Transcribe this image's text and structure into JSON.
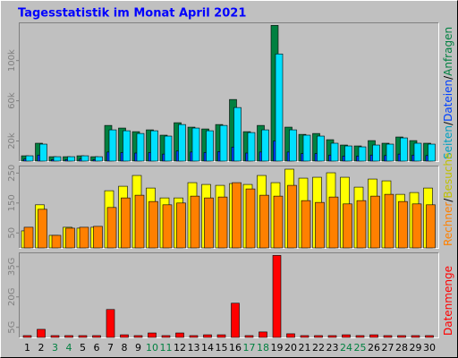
{
  "title": "Tagesstatistik im Monat April 2021",
  "label_separator": "/",
  "chart_data": [
    {
      "type": "bar",
      "series": [
        {
          "name": "Anfragen",
          "color": "#008040",
          "values": [
            5300,
            17800,
            4400,
            4400,
            5300,
            4400,
            35500,
            32900,
            29300,
            31100,
            25800,
            38200,
            33800,
            32000,
            36400,
            61300,
            29300,
            35500,
            135000,
            33800,
            26600,
            27500,
            21300,
            16000,
            15100,
            20400,
            17800,
            24000,
            20400,
            17800
          ]
        },
        {
          "name": "Dateien",
          "color": "#0040ff",
          "values": [
            2000,
            6000,
            1500,
            1500,
            2000,
            1500,
            9000,
            8500,
            8000,
            8500,
            7000,
            10000,
            9000,
            8500,
            9500,
            14000,
            8000,
            9000,
            20000,
            9000,
            7500,
            7500,
            6000,
            5000,
            5000,
            6000,
            5500,
            7000,
            6000,
            5500
          ]
        },
        {
          "name": "Seiten",
          "color": "#00e0ff",
          "values": [
            5300,
            16900,
            4400,
            4400,
            5300,
            4400,
            31100,
            30200,
            27500,
            30200,
            24900,
            36400,
            32900,
            30200,
            35500,
            53300,
            28400,
            31100,
            106600,
            31100,
            25800,
            24900,
            17800,
            15100,
            14200,
            16000,
            16900,
            23100,
            17800,
            16900
          ]
        }
      ],
      "ylim": [
        0,
        138000
      ],
      "yticks": [
        {
          "value": 20000,
          "label": "20k"
        },
        {
          "value": 60000,
          "label": "60k"
        },
        {
          "value": 100000,
          "label": "100k"
        }
      ]
    },
    {
      "type": "bar",
      "series": [
        {
          "name": "Besuche",
          "color": "#ffff00",
          "values": [
            57,
            144,
            42,
            69,
            66,
            69,
            191,
            206,
            242,
            200,
            167,
            167,
            218,
            212,
            209,
            215,
            212,
            242,
            218,
            263,
            233,
            236,
            251,
            236,
            203,
            230,
            224,
            179,
            185,
            200
          ]
        },
        {
          "name": "Rechner",
          "color": "#ff8000",
          "values": [
            69,
            129,
            42,
            66,
            69,
            72,
            135,
            167,
            176,
            155,
            144,
            150,
            173,
            167,
            170,
            218,
            197,
            176,
            173,
            209,
            158,
            152,
            170,
            147,
            158,
            173,
            179,
            155,
            147,
            144
          ]
        }
      ],
      "ylim": [
        0,
        275
      ],
      "yticks": [
        50,
        150,
        250
      ]
    },
    {
      "type": "bar",
      "categories": [
        "1",
        "2",
        "3",
        "4",
        "5",
        "6",
        "7",
        "8",
        "9",
        "10",
        "11",
        "12",
        "13",
        "14",
        "15",
        "16",
        "17",
        "18",
        "19",
        "20",
        "21",
        "22",
        "23",
        "24",
        "25",
        "26",
        "27",
        "28",
        "29",
        "30"
      ],
      "category_colors": [
        "#000000",
        "#000000",
        "#008040",
        "#008040",
        "#000000",
        "#000000",
        "#000000",
        "#000000",
        "#000000",
        "#008040",
        "#008040",
        "#000000",
        "#000000",
        "#000000",
        "#000000",
        "#000000",
        "#008040",
        "#008040",
        "#000000",
        "#000000",
        "#000000",
        "#000000",
        "#000000",
        "#008040",
        "#008040",
        "#000000",
        "#000000",
        "#000000",
        "#000000",
        "#000000"
      ],
      "series": [
        {
          "name": "Datenmenge",
          "color": "#ff0000",
          "values": [
            0.9,
            4.0,
            0.9,
            0.9,
            0.9,
            0.9,
            13.8,
            1.3,
            0.9,
            2.2,
            0.9,
            2.2,
            0.9,
            1.3,
            1.3,
            16.9,
            0.9,
            2.7,
            40.5,
            1.8,
            0.9,
            0.9,
            0.9,
            1.3,
            0.9,
            1.3,
            0.9,
            0.9,
            0.9,
            0.9
          ]
        }
      ],
      "ylim": [
        0,
        42
      ],
      "yticks": [
        {
          "value": 5,
          "label": "5G"
        },
        {
          "value": 20,
          "label": "20G"
        },
        {
          "value": 35,
          "label": "35G"
        }
      ]
    }
  ]
}
